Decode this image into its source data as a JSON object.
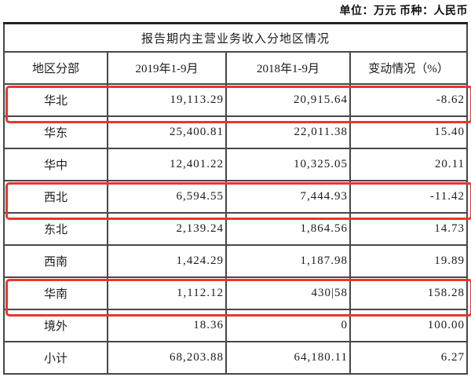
{
  "meta": {
    "unit_label": "单位：万元 币种：人民币"
  },
  "table": {
    "title": "报告期内主营业务收入分地区情况",
    "columns": [
      "地区分部",
      "2019年1-9月",
      "2018年1-9月",
      "变动情况（%）"
    ],
    "rows": [
      {
        "region": "华北",
        "y2019": "19,113.29",
        "y2018": "20,915.64",
        "change": "-8.62",
        "highlighted": true
      },
      {
        "region": "华东",
        "y2019": "25,400.81",
        "y2018": "22,011.38",
        "change": "15.40",
        "highlighted": false
      },
      {
        "region": "华中",
        "y2019": "12,401.22",
        "y2018": "10,325.05",
        "change": "20.11",
        "highlighted": false
      },
      {
        "region": "西北",
        "y2019": "6,594.55",
        "y2018": "7,444.93",
        "change": "-11.42",
        "highlighted": true
      },
      {
        "region": "东北",
        "y2019": "2,139.24",
        "y2018": "1,864.56",
        "change": "14.73",
        "highlighted": false
      },
      {
        "region": "西南",
        "y2019": "1,424.29",
        "y2018": "1,187.98",
        "change": "19.89",
        "highlighted": false
      },
      {
        "region": "华南",
        "y2019": "1,112.12",
        "y2018": "430|58",
        "change": "158.28",
        "highlighted": true
      },
      {
        "region": "境外",
        "y2019": "18.36",
        "y2018": "0",
        "change": "100.00",
        "highlighted": false
      },
      {
        "region": "小计",
        "y2019": "68,203.88",
        "y2018": "64,180.11",
        "change": "6.27",
        "highlighted": false
      }
    ],
    "highlight_color": "#e8372c",
    "border_color": "#474747"
  }
}
